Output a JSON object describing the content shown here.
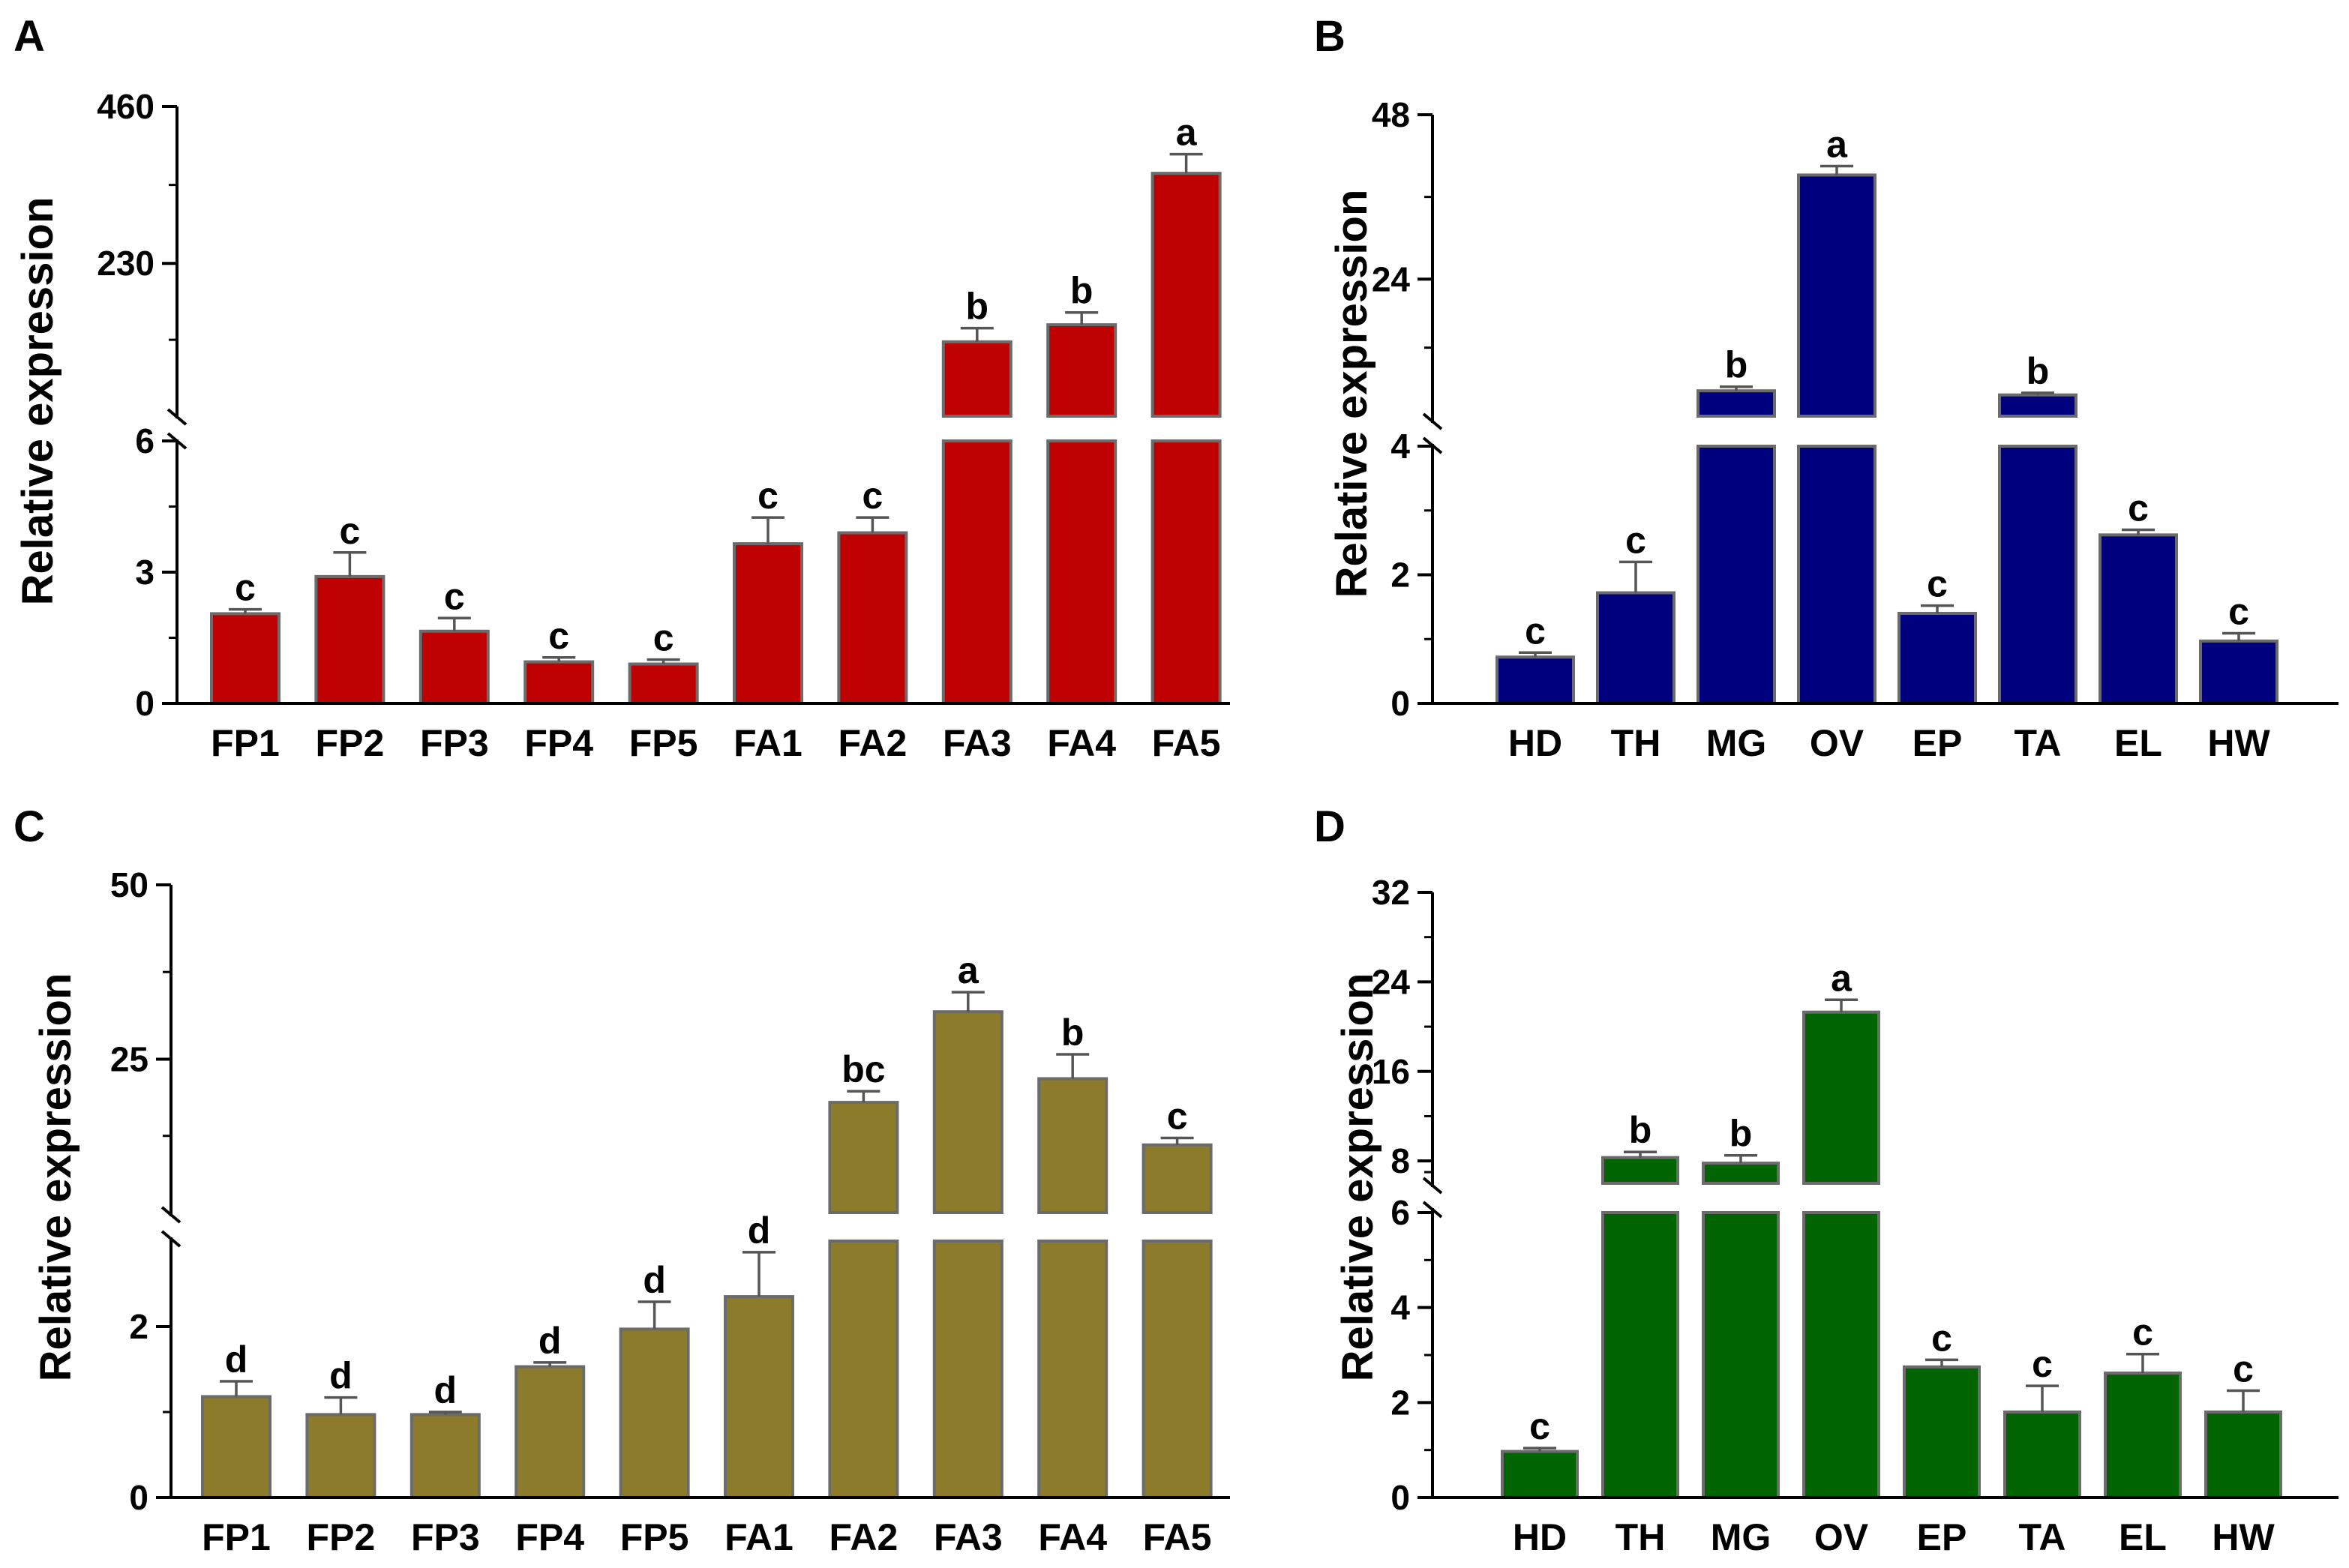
{
  "chart_data": [
    {
      "panel": "A",
      "type": "bar",
      "ylabel": "Relative expression",
      "xlabel": "",
      "categories": [
        "FP1",
        "FP2",
        "FP3",
        "FP4",
        "FP5",
        "FA1",
        "FA2",
        "FA3",
        "FA4",
        "FA5"
      ],
      "values": [
        2.05,
        2.9,
        1.65,
        0.95,
        0.9,
        3.65,
        3.9,
        115,
        140,
        362
      ],
      "errors": [
        0.1,
        0.55,
        0.3,
        0.1,
        0.1,
        0.6,
        0.35,
        20,
        18,
        28
      ],
      "significance": [
        "c",
        "c",
        "c",
        "c",
        "c",
        "c",
        "c",
        "b",
        "b",
        "a"
      ],
      "bar_color": "#bf0000",
      "axis_break": {
        "lower": [
          0,
          6
        ],
        "upper": [
          6,
          460
        ]
      },
      "yticks_lower": [
        0,
        3,
        6
      ],
      "yticks_upper": [
        230,
        460
      ]
    },
    {
      "panel": "B",
      "type": "bar",
      "ylabel": "Relative expression",
      "xlabel": "",
      "categories": [
        "HD",
        "TH",
        "MG",
        "OV",
        "EP",
        "TA",
        "EL",
        "HW"
      ],
      "values": [
        0.72,
        1.72,
        7.7,
        39.2,
        1.4,
        7.1,
        2.62,
        0.97
      ],
      "errors": [
        0.07,
        0.48,
        0.6,
        1.3,
        0.12,
        0.3,
        0.08,
        0.12
      ],
      "significance": [
        "c",
        "c",
        "b",
        "a",
        "c",
        "b",
        "c",
        "c"
      ],
      "bar_color": "#00007f",
      "axis_break": {
        "lower": [
          0,
          4
        ],
        "upper": [
          4,
          48
        ]
      },
      "yticks_lower": [
        0,
        2,
        4
      ],
      "yticks_upper": [
        24,
        48
      ]
    },
    {
      "panel": "C",
      "type": "bar",
      "ylabel": "Relative expression",
      "xlabel": "",
      "categories": [
        "FP1",
        "FP2",
        "FP3",
        "FP4",
        "FP5",
        "FA1",
        "FA2",
        "FA3",
        "FA4",
        "FA5"
      ],
      "values": [
        1.18,
        0.97,
        0.97,
        1.53,
        1.97,
        2.35,
        18.8,
        31.8,
        22.2,
        12.7
      ],
      "errors": [
        0.18,
        0.2,
        0.03,
        0.05,
        0.32,
        0.52,
        1.6,
        2.8,
        3.5,
        1.0
      ],
      "significance": [
        "d",
        "d",
        "d",
        "d",
        "d",
        "d",
        "bc",
        "a",
        "b",
        "c"
      ],
      "bar_color": "#8b7b2b",
      "axis_break": {
        "lower": [
          0,
          3
        ],
        "upper": [
          3,
          50
        ]
      },
      "yticks_lower": [
        0,
        2
      ],
      "yticks_upper": [
        25,
        50
      ]
    },
    {
      "panel": "D",
      "type": "bar",
      "ylabel": "Relative expression",
      "xlabel": "",
      "categories": [
        "HD",
        "TH",
        "MG",
        "OV",
        "EP",
        "TA",
        "EL",
        "HW"
      ],
      "values": [
        0.97,
        8.3,
        7.8,
        21.3,
        2.75,
        1.8,
        2.62,
        1.8
      ],
      "errors": [
        0.07,
        0.5,
        0.7,
        1.1,
        0.15,
        0.55,
        0.4,
        0.45
      ],
      "significance": [
        "c",
        "b",
        "b",
        "a",
        "c",
        "c",
        "c",
        "c"
      ],
      "bar_color": "#006400",
      "axis_break": {
        "lower": [
          0,
          6
        ],
        "upper": [
          6,
          32
        ]
      },
      "yticks_lower": [
        0,
        2,
        4,
        6
      ],
      "yticks_upper": [
        8,
        16,
        24,
        32
      ]
    }
  ]
}
